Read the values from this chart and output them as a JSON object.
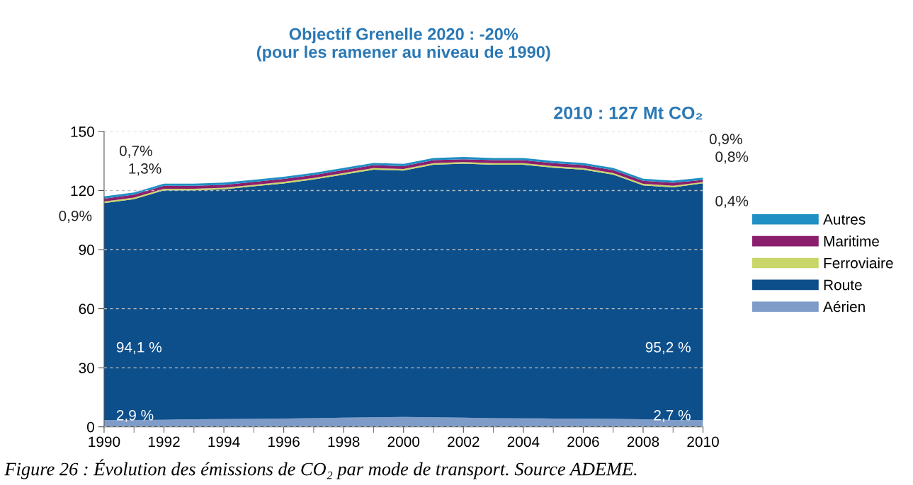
{
  "chart_data": {
    "type": "area",
    "stacked": true,
    "title": "Objectif Grenelle 2020 : -20%\n(pour les ramener au niveau de 1990)",
    "x": [
      1990,
      1991,
      1992,
      1993,
      1994,
      1995,
      1996,
      1997,
      1998,
      1999,
      2000,
      2001,
      2002,
      2003,
      2004,
      2005,
      2006,
      2007,
      2008,
      2009,
      2010
    ],
    "series": [
      {
        "name": "Aérien",
        "color": "#7f9cc8",
        "values": [
          3.4,
          3.5,
          3.6,
          3.8,
          3.9,
          4.0,
          4.2,
          4.4,
          4.6,
          4.8,
          5.0,
          4.8,
          4.6,
          4.4,
          4.3,
          4.2,
          4.1,
          4.0,
          3.8,
          3.5,
          3.4
        ]
      },
      {
        "name": "Route",
        "color": "#0d4f8b",
        "values": [
          110.2,
          112.1,
          116.5,
          116.3,
          116.7,
          118.1,
          119.4,
          121.2,
          123.5,
          125.8,
          125.1,
          128.3,
          129.0,
          128.7,
          128.8,
          127.4,
          126.5,
          124.1,
          118.8,
          118.1,
          120.3
        ]
      },
      {
        "name": "Ferroviaire",
        "color": "#c9d66a",
        "values": [
          0.8,
          0.8,
          0.8,
          0.8,
          0.8,
          0.8,
          0.8,
          0.8,
          0.8,
          0.8,
          0.8,
          0.8,
          0.8,
          0.8,
          0.8,
          0.8,
          0.8,
          0.8,
          0.8,
          0.8,
          0.6
        ]
      },
      {
        "name": "Maritime",
        "color": "#8b1f6e",
        "values": [
          1.5,
          1.5,
          1.5,
          1.5,
          1.5,
          1.5,
          1.5,
          1.5,
          1.5,
          1.5,
          1.5,
          1.5,
          1.5,
          1.5,
          1.5,
          1.5,
          1.5,
          1.5,
          1.5,
          1.5,
          1.1
        ]
      },
      {
        "name": "Autres",
        "color": "#1f8fc4",
        "values": [
          1.1,
          1.1,
          1.1,
          1.1,
          1.1,
          1.1,
          1.1,
          1.1,
          1.1,
          1.1,
          1.1,
          1.1,
          1.1,
          1.1,
          1.1,
          1.1,
          1.1,
          1.1,
          1.1,
          1.1,
          1.1
        ]
      }
    ],
    "xlim": [
      1990,
      2010
    ],
    "xticks": [
      1990,
      1992,
      1994,
      1996,
      1998,
      2000,
      2002,
      2004,
      2006,
      2008,
      2010
    ],
    "ylim": [
      0,
      150
    ],
    "yticks": [
      0,
      30,
      60,
      90,
      120,
      150
    ],
    "grid": "y",
    "legend": "right",
    "annotations": [
      "0,9%",
      "0,7%",
      "1,3%",
      "0,9%",
      "0,8%",
      "0,4%",
      "94,1 %",
      "95,2 %",
      "2,9 %",
      "2,7 %",
      "2010 : 127 Mt CO₂",
      "Figure 26 : Évolution des émissions de CO₂ par mode de transport. Source ADEME."
    ]
  }
}
